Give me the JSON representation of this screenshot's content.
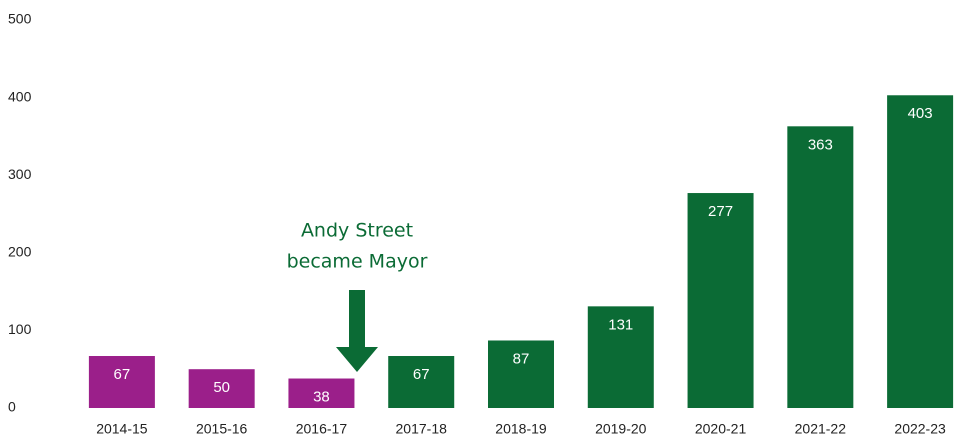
{
  "chart_data": {
    "type": "bar",
    "categories": [
      "2014-15",
      "2015-16",
      "2016-17",
      "2017-18",
      "2018-19",
      "2019-20",
      "2020-21",
      "2021-22",
      "2022-23"
    ],
    "values": [
      67,
      50,
      38,
      67,
      87,
      131,
      277,
      363,
      403
    ],
    "colors": [
      "#9b1f8a",
      "#9b1f8a",
      "#9b1f8a",
      "#0b6b35",
      "#0b6b35",
      "#0b6b35",
      "#0b6b35",
      "#0b6b35",
      "#0b6b35"
    ],
    "ylim": [
      0,
      500
    ],
    "yticks": [
      0,
      100,
      200,
      300,
      400,
      500
    ],
    "annotation": [
      "Andy Street",
      "became Mayor"
    ],
    "annotation_color": "#0b6b35"
  }
}
